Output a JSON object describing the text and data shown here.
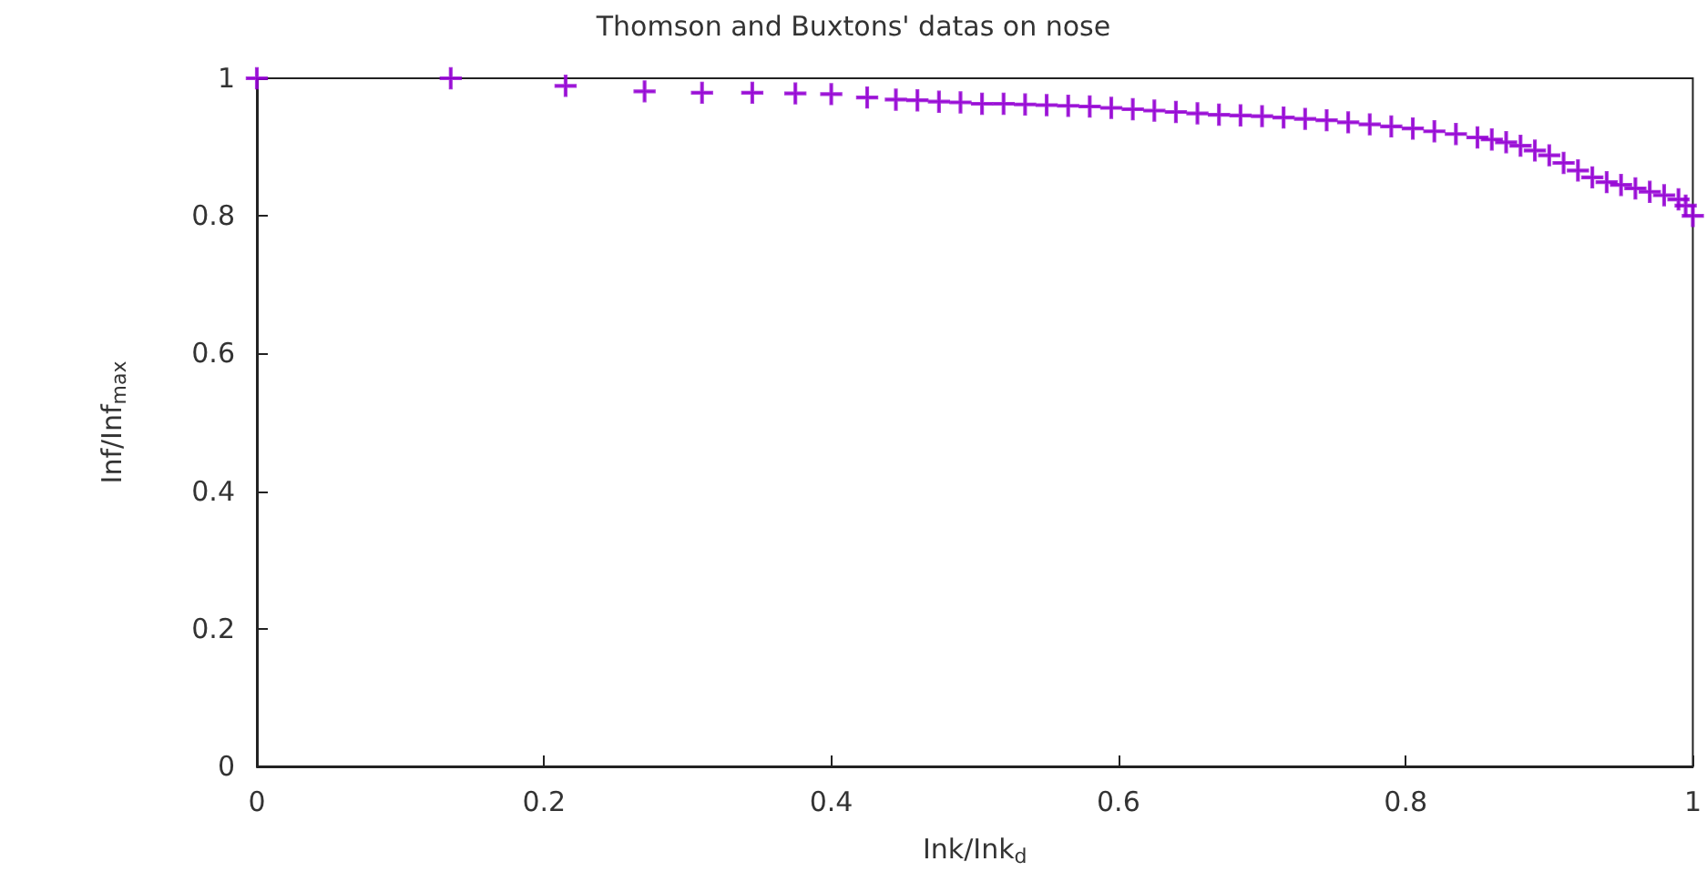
{
  "chart_data": {
    "type": "scatter",
    "title": "Thomson and Buxtons' datas on nose",
    "xlabel": "Ink/Ink$_{d}$",
    "ylabel": "Inf/Inf$_{max}$",
    "x": [
      0,
      0.135,
      0.215,
      0.27,
      0.31,
      0.345,
      0.375,
      0.4,
      0.425,
      0.445,
      0.46,
      0.475,
      0.49,
      0.505,
      0.52,
      0.535,
      0.55,
      0.565,
      0.58,
      0.595,
      0.61,
      0.625,
      0.64,
      0.655,
      0.67,
      0.685,
      0.7,
      0.715,
      0.73,
      0.745,
      0.76,
      0.775,
      0.79,
      0.805,
      0.82,
      0.835,
      0.85,
      0.86,
      0.87,
      0.88,
      0.89,
      0.9,
      0.91,
      0.92,
      0.93,
      0.94,
      0.95,
      0.96,
      0.97,
      0.98,
      0.99,
      0.995,
      1
    ],
    "series": [
      {
        "color": "#9400d3",
        "values": [
          1,
          1,
          0.989,
          0.981,
          0.979,
          0.979,
          0.978,
          0.977,
          0.972,
          0.969,
          0.968,
          0.966,
          0.965,
          0.963,
          0.963,
          0.962,
          0.961,
          0.96,
          0.959,
          0.957,
          0.955,
          0.953,
          0.951,
          0.949,
          0.947,
          0.946,
          0.945,
          0.943,
          0.941,
          0.939,
          0.936,
          0.933,
          0.93,
          0.927,
          0.923,
          0.919,
          0.914,
          0.911,
          0.907,
          0.902,
          0.895,
          0.888,
          0.877,
          0.866,
          0.856,
          0.849,
          0.845,
          0.84,
          0.835,
          0.83,
          0.824,
          0.815,
          0.8
        ]
      }
    ],
    "xlim": [
      0,
      1
    ],
    "xticks": [
      0,
      0.2,
      0.4,
      0.6,
      0.8,
      1
    ],
    "ylim": [
      0,
      1
    ],
    "yticks": [
      0,
      0.2,
      0.4,
      0.6,
      0.8,
      1
    ],
    "marker": "cross",
    "grid": false
  }
}
